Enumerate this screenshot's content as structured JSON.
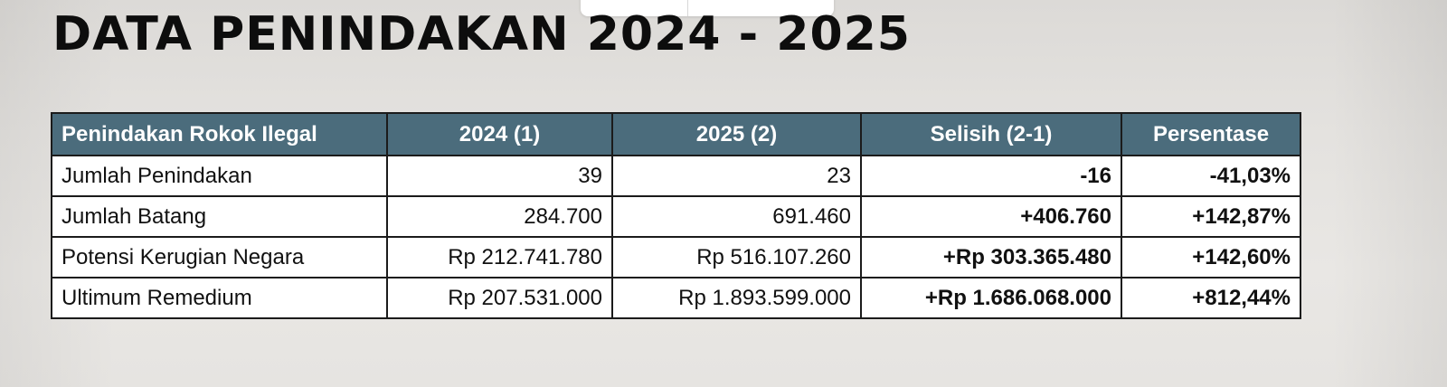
{
  "title": "DATA PENINDAKAN 2024 - 2025",
  "table": {
    "headers": [
      "Penindakan Rokok Ilegal",
      "2024 (1)",
      "2025 (2)",
      "Selisih (2-1)",
      "Persentase"
    ],
    "rows": [
      {
        "label": "Jumlah Penindakan",
        "v2024": "39",
        "v2025": "23",
        "selisih": "-16",
        "persentase": "-41,03%"
      },
      {
        "label": "Jumlah Batang",
        "v2024": "284.700",
        "v2025": "691.460",
        "selisih": "+406.760",
        "persentase": "+142,87%"
      },
      {
        "label": "Potensi Kerugian Negara",
        "v2024": "Rp 212.741.780",
        "v2025": "Rp 516.107.260",
        "selisih": "+Rp 303.365.480",
        "persentase": "+142,60%"
      },
      {
        "label": "Ultimum Remedium",
        "v2024": "Rp 207.531.000",
        "v2025": "Rp 1.893.599.000",
        "selisih": "+Rp 1.686.068.000",
        "persentase": "+812,44%"
      }
    ]
  },
  "colors": {
    "header_bg": "#4b6c7c",
    "header_text": "#ffffff",
    "border": "#1b1b1b",
    "title_text": "#0d0d0d"
  }
}
